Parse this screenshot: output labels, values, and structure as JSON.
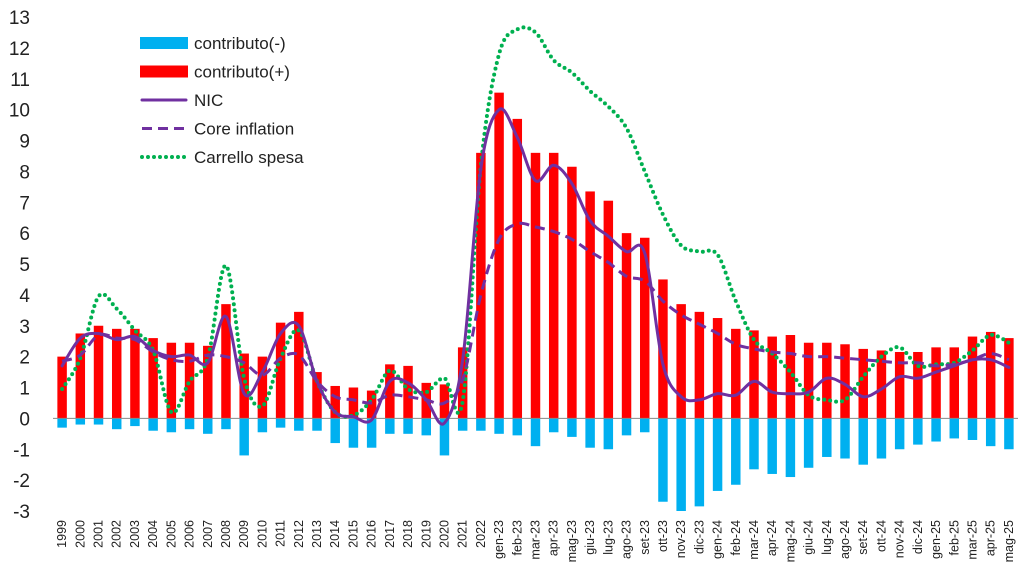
{
  "chart_data": {
    "type": "bar",
    "title": "",
    "xlabel": "",
    "ylabel": "",
    "ylim": [
      -3,
      13
    ],
    "yticks": [
      -3,
      -2,
      -1,
      0,
      1,
      2,
      3,
      4,
      5,
      6,
      7,
      8,
      9,
      10,
      11,
      12,
      13
    ],
    "grid": false,
    "legend_position": "top-left",
    "categories": [
      "1999",
      "2000",
      "2001",
      "2002",
      "2003",
      "2004",
      "2005",
      "2006",
      "2007",
      "2008",
      "2009",
      "2010",
      "2011",
      "2012",
      "2013",
      "2014",
      "2015",
      "2016",
      "2017",
      "2018",
      "2019",
      "2020",
      "2021",
      "2022",
      "gen-23",
      "feb-23",
      "mar-23",
      "apr-23",
      "mag-23",
      "giu-23",
      "lug-23",
      "ago-23",
      "set-23",
      "ott-23",
      "nov-23",
      "dic-23",
      "gen-24",
      "feb-24",
      "mar-24",
      "apr-24",
      "mag-24",
      "giu-24",
      "lug-24",
      "ago-24",
      "set-24",
      "ott-24",
      "nov-24",
      "dic-24",
      "gen-25",
      "feb-25",
      "mar-25",
      "apr-25",
      "mag-25"
    ],
    "series": [
      {
        "name": "contributo(-)",
        "kind": "bar",
        "color": "#00b0f0",
        "values": [
          -0.3,
          -0.2,
          -0.2,
          -0.35,
          -0.25,
          -0.4,
          -0.45,
          -0.35,
          -0.5,
          -0.35,
          -1.2,
          -0.45,
          -0.3,
          -0.4,
          -0.4,
          -0.8,
          -0.95,
          -0.95,
          -0.5,
          -0.5,
          -0.55,
          -1.2,
          -0.4,
          -0.4,
          -0.5,
          -0.55,
          -0.9,
          -0.45,
          -0.6,
          -0.95,
          -1.0,
          -0.55,
          -0.45,
          -2.7,
          -3.0,
          -2.85,
          -2.35,
          -2.15,
          -1.65,
          -1.8,
          -1.9,
          -1.6,
          -1.25,
          -1.3,
          -1.5,
          -1.3,
          -1.0,
          -0.85,
          -0.75,
          -0.65,
          -0.7,
          -0.9,
          -1.0
        ]
      },
      {
        "name": "contributo(+)",
        "kind": "bar",
        "color": "#ff0000",
        "values": [
          2.0,
          2.75,
          3.0,
          2.9,
          2.9,
          2.6,
          2.45,
          2.45,
          2.35,
          3.7,
          2.1,
          2.0,
          3.1,
          3.45,
          1.5,
          1.05,
          1.0,
          0.9,
          1.75,
          1.7,
          1.15,
          1.1,
          2.3,
          8.6,
          10.55,
          9.7,
          8.6,
          8.6,
          8.15,
          7.35,
          7.05,
          6.0,
          5.85,
          4.5,
          3.7,
          3.45,
          3.25,
          2.9,
          2.85,
          2.65,
          2.7,
          2.45,
          2.45,
          2.4,
          2.25,
          2.2,
          2.15,
          2.15,
          2.3,
          2.3,
          2.65,
          2.8,
          2.6
        ]
      },
      {
        "name": "NIC",
        "kind": "line",
        "style": "solid",
        "color": "#7030a0",
        "values": [
          1.7,
          2.6,
          2.75,
          2.55,
          2.65,
          2.2,
          2.0,
          2.05,
          1.8,
          3.3,
          0.8,
          1.5,
          2.75,
          3.0,
          1.2,
          0.2,
          0.05,
          -0.05,
          1.2,
          1.15,
          0.6,
          -0.15,
          1.9,
          8.1,
          10.0,
          9.1,
          7.7,
          8.2,
          7.6,
          6.4,
          5.9,
          5.4,
          5.35,
          1.75,
          0.7,
          0.6,
          0.8,
          0.75,
          1.2,
          0.85,
          0.8,
          0.85,
          1.3,
          1.1,
          0.7,
          0.95,
          1.35,
          1.3,
          1.5,
          1.7,
          1.9,
          1.9,
          1.65
        ]
      },
      {
        "name": "Core inflation",
        "kind": "line",
        "style": "dashed",
        "color": "#7030a0",
        "values": [
          1.85,
          2.05,
          2.7,
          2.6,
          2.55,
          2.15,
          1.9,
          1.85,
          2.05,
          2.0,
          1.8,
          1.4,
          1.95,
          2.05,
          1.2,
          0.7,
          0.6,
          0.5,
          0.75,
          0.7,
          0.6,
          0.5,
          1.25,
          4.0,
          5.8,
          6.3,
          6.2,
          6.05,
          5.8,
          5.4,
          5.05,
          4.6,
          4.45,
          3.8,
          3.35,
          3.05,
          2.75,
          2.4,
          2.25,
          2.15,
          2.1,
          2.0,
          2.0,
          1.95,
          1.9,
          1.85,
          1.8,
          1.8,
          1.7,
          1.75,
          1.9,
          2.1,
          1.9
        ]
      },
      {
        "name": "Carrello spesa",
        "kind": "line",
        "style": "dotted",
        "color": "#00b050",
        "values": [
          0.95,
          1.95,
          3.95,
          3.55,
          2.85,
          2.2,
          0.2,
          1.2,
          1.95,
          4.95,
          1.3,
          0.4,
          1.95,
          2.85,
          1.2,
          0.2,
          0.1,
          0.6,
          1.55,
          0.95,
          0.85,
          1.3,
          0.55,
          8.2,
          11.8,
          12.6,
          12.5,
          11.6,
          11.2,
          10.6,
          10.1,
          9.4,
          8.0,
          6.6,
          5.6,
          5.4,
          5.3,
          3.8,
          2.55,
          2.1,
          1.5,
          0.75,
          0.6,
          0.6,
          1.35,
          2.0,
          2.3,
          1.7,
          1.75,
          1.8,
          2.2,
          2.7,
          2.45
        ]
      }
    ]
  }
}
